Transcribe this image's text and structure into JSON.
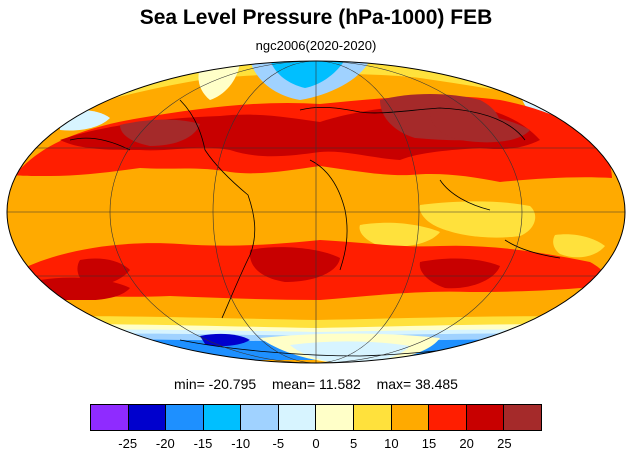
{
  "title": "Sea Level Pressure (hPa-1000) FEB",
  "subtitle": "ngc2006(2020-2020)",
  "stats": {
    "min": "min= -20.795",
    "mean": "mean= 11.582",
    "max": "max= 38.485"
  },
  "colorbar": {
    "colors": [
      "#8f2bff",
      "#0000cd",
      "#1e90ff",
      "#00bfff",
      "#a0d2ff",
      "#d7f4ff",
      "#ffffc8",
      "#ffe13c",
      "#ffaa00",
      "#ff1e00",
      "#c80000",
      "#a52a2a"
    ],
    "labels": [
      "-25",
      "-20",
      "-15",
      "-10",
      "-5",
      "0",
      "5",
      "10",
      "15",
      "20",
      "25"
    ]
  }
}
